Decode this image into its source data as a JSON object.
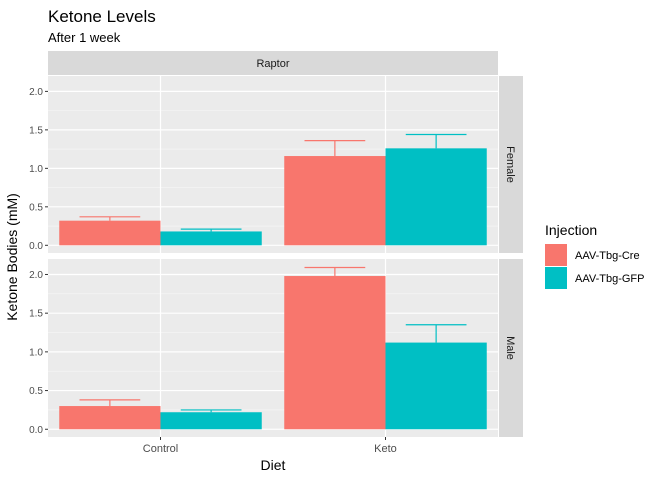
{
  "chart_data": {
    "type": "bar",
    "title": "Ketone Levels",
    "subtitle": "After 1 week",
    "xlabel": "Diet",
    "ylabel": "Ketone Bodies (mM)",
    "facet_top": "Raptor",
    "facet_rows": [
      "Female",
      "Male"
    ],
    "categories": [
      "Control",
      "Keto"
    ],
    "ylim": [
      -0.1,
      2.2
    ],
    "yticks": [
      0.0,
      0.5,
      1.0,
      1.5,
      2.0
    ],
    "ytick_labels": [
      "0.0",
      "0.5",
      "1.0",
      "1.5",
      "2.0"
    ],
    "grid": true,
    "legend": {
      "title": "Injection",
      "position": "right",
      "entries": [
        "AAV-Tbg-Cre",
        "AAV-Tbg-GFP"
      ]
    },
    "series": [
      {
        "name": "AAV-Tbg-Cre",
        "color": "#F8766D",
        "panels": {
          "Female": {
            "values": [
              0.32,
              1.16
            ],
            "error_upper": [
              0.37,
              1.36
            ]
          },
          "Male": {
            "values": [
              0.3,
              1.98
            ],
            "error_upper": [
              0.38,
              2.09
            ]
          }
        }
      },
      {
        "name": "AAV-Tbg-GFP",
        "color": "#00BFC4",
        "panels": {
          "Female": {
            "values": [
              0.18,
              1.26
            ],
            "error_upper": [
              0.21,
              1.44
            ]
          },
          "Male": {
            "values": [
              0.22,
              1.12
            ],
            "error_upper": [
              0.25,
              1.35
            ]
          }
        }
      }
    ]
  },
  "colors": {
    "panel_bg": "#EBEBEB",
    "strip_bg": "#D9D9D9",
    "grid_major": "#FFFFFF"
  }
}
